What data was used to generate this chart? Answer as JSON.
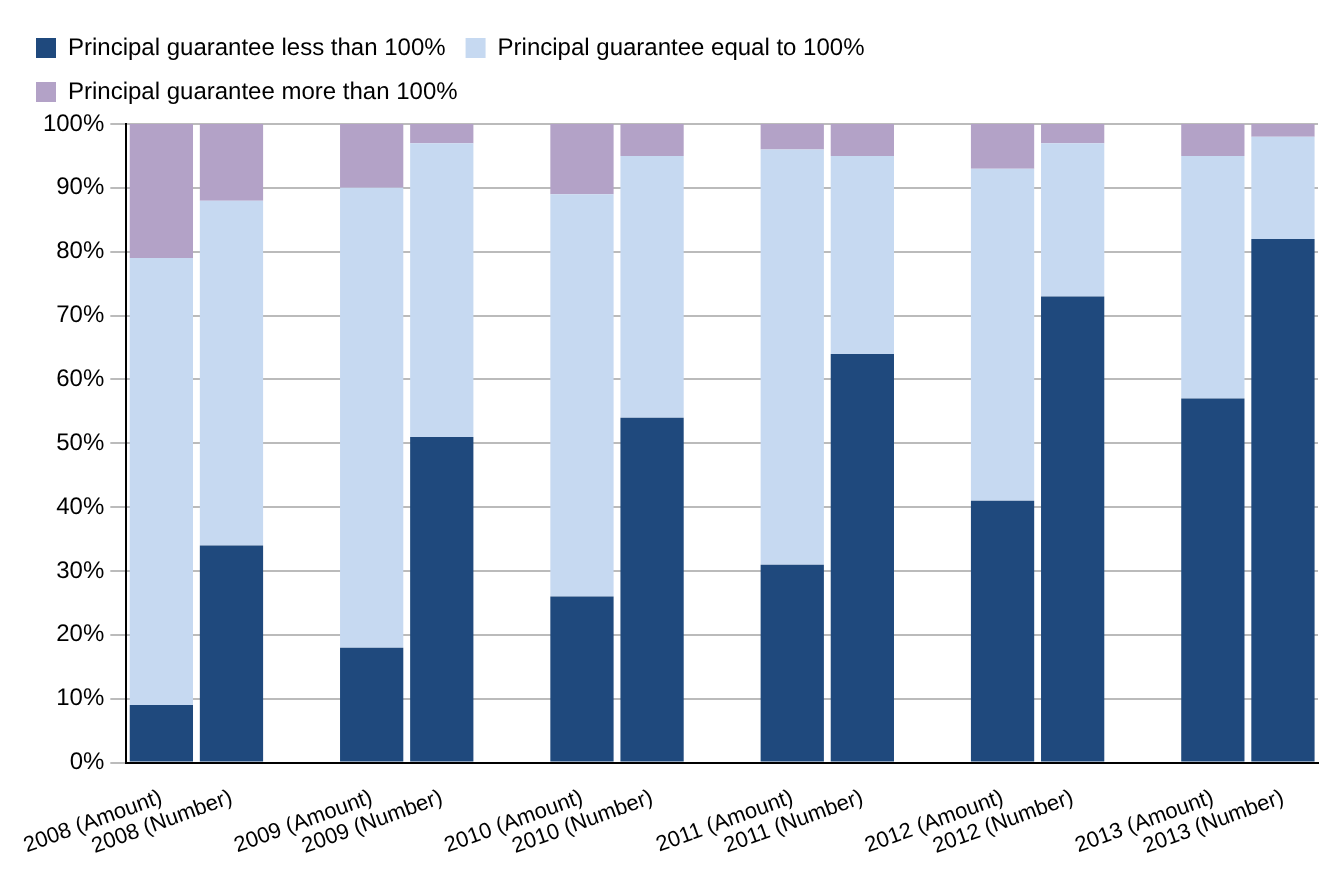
{
  "chart_data": {
    "type": "bar",
    "stacked": true,
    "grid": "y",
    "legend": "top",
    "categories": [
      "2008 (Amount)",
      "2008 (Number)",
      null,
      "2009 (Amount)",
      "2009 (Number)",
      null,
      "2010 (Amount)",
      "2010 (Number)",
      null,
      "2011 (Amount)",
      "2011 (Number)",
      null,
      "2012 (Amount)",
      "2012 (Number)",
      null,
      "2013 (Amount)",
      "2013 (Number)"
    ],
    "series": [
      {
        "name": "Principal guarantee less than 100%",
        "color": "#1f497d",
        "values": [
          9,
          34,
          null,
          18,
          51,
          null,
          26,
          54,
          null,
          31,
          64,
          null,
          41,
          73,
          null,
          57,
          82
        ]
      },
      {
        "name": "Principal guarantee equal to 100%",
        "color": "#c6d9f1",
        "values": [
          70,
          54,
          null,
          72,
          46,
          null,
          63,
          41,
          null,
          65,
          31,
          null,
          52,
          24,
          null,
          38,
          16
        ]
      },
      {
        "name": "Principal guarantee more than 100%",
        "color": "#b3a2c7",
        "values": [
          21,
          12,
          null,
          10,
          3,
          null,
          11,
          5,
          null,
          4,
          5,
          null,
          7,
          3,
          null,
          5,
          2
        ]
      }
    ],
    "ylim": [
      0,
      100
    ],
    "yticks": [
      {
        "value": 0,
        "label": "0%"
      },
      {
        "value": 10,
        "label": "10%"
      },
      {
        "value": 20,
        "label": "20%"
      },
      {
        "value": 30,
        "label": "30%"
      },
      {
        "value": 40,
        "label": "40%"
      },
      {
        "value": 50,
        "label": "50%"
      },
      {
        "value": 60,
        "label": "60%"
      },
      {
        "value": 70,
        "label": "70%"
      },
      {
        "value": 80,
        "label": "80%"
      },
      {
        "value": 90,
        "label": "90%"
      },
      {
        "value": 100,
        "label": "100%"
      }
    ]
  }
}
